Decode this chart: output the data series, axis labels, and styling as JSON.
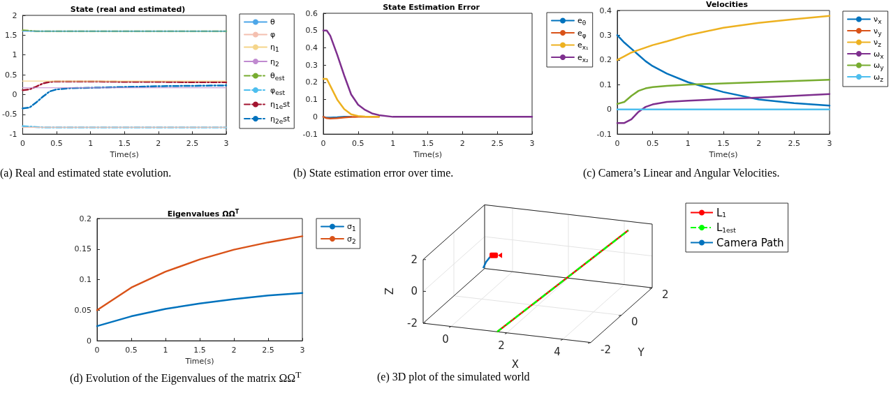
{
  "chart_data": [
    {
      "type": "line",
      "title": "State (real and estimated)",
      "xlabel": "Time(s)",
      "annotations": [
        "(a) Real and estimated state evolution."
      ],
      "legend": "right",
      "grid": false,
      "marker": "none",
      "xlim": [
        0,
        3
      ],
      "ylim": [
        -1,
        2
      ],
      "xticks": [
        0,
        0.5,
        1,
        1.5,
        2,
        2.5,
        3
      ],
      "yticks": [
        -1,
        -0.5,
        0,
        0.5,
        1,
        1.5,
        2
      ],
      "x": [
        0,
        0.1,
        0.2,
        0.3,
        0.4,
        0.5,
        0.7,
        1,
        1.5,
        2,
        2.5,
        3
      ],
      "series": [
        {
          "name": "θ",
          "color": "#4da6e8",
          "line_style": "solid",
          "values": [
            1.6,
            1.6,
            1.6,
            1.6,
            1.6,
            1.6,
            1.6,
            1.6,
            1.6,
            1.6,
            1.6,
            1.6
          ]
        },
        {
          "name": "φ",
          "color": "#f4c0b0",
          "line_style": "solid",
          "values": [
            -0.83,
            -0.83,
            -0.83,
            -0.83,
            -0.83,
            -0.83,
            -0.83,
            -0.83,
            -0.83,
            -0.83,
            -0.83,
            -0.83
          ]
        },
        {
          "name": "η$_{1}$",
          "color": "#f5d58a",
          "line_style": "solid",
          "values": [
            0.34,
            0.34,
            0.34,
            0.34,
            0.34,
            0.34,
            0.34,
            0.34,
            0.34,
            0.34,
            0.34,
            0.34
          ]
        },
        {
          "name": "η$_{2}$",
          "color": "#c08ad0",
          "line_style": "solid",
          "values": [
            0.17,
            0.17,
            0.17,
            0.17,
            0.17,
            0.17,
            0.17,
            0.17,
            0.17,
            0.17,
            0.17,
            0.17
          ]
        },
        {
          "name": "θ$_{est}$",
          "color": "#77ac30",
          "line_style": "dashed",
          "values": [
            1.62,
            1.61,
            1.6,
            1.6,
            1.6,
            1.6,
            1.6,
            1.6,
            1.6,
            1.6,
            1.6,
            1.6
          ]
        },
        {
          "name": "φ$_{est}$",
          "color": "#4dbeee",
          "line_style": "dashed",
          "values": [
            -0.8,
            -0.81,
            -0.82,
            -0.83,
            -0.83,
            -0.83,
            -0.83,
            -0.83,
            -0.83,
            -0.83,
            -0.83,
            -0.83
          ]
        },
        {
          "name": "η$_{1}$$_{e}$st",
          "color": "#a2142f",
          "line_style": "dashed",
          "values": [
            0.11,
            0.13,
            0.2,
            0.28,
            0.32,
            0.33,
            0.33,
            0.33,
            0.32,
            0.32,
            0.31,
            0.31
          ]
        },
        {
          "name": "η$_{2}$$_{e}$st",
          "color": "#0072bd",
          "line_style": "dashed",
          "values": [
            -0.35,
            -0.33,
            -0.2,
            -0.05,
            0.08,
            0.13,
            0.16,
            0.17,
            0.19,
            0.21,
            0.22,
            0.23
          ]
        }
      ]
    },
    {
      "type": "line",
      "title": "State Estimation Error",
      "xlabel": "Time(s)",
      "annotations": [
        "(b) State estimation error over time."
      ],
      "legend": "right",
      "grid": false,
      "marker": "none",
      "xlim": [
        0,
        3
      ],
      "ylim": [
        -0.1,
        0.6
      ],
      "xticks": [
        0,
        0.5,
        1,
        1.5,
        2,
        2.5,
        3
      ],
      "yticks": [
        -0.1,
        0,
        0.1,
        0.2,
        0.3,
        0.4,
        0.5,
        0.6
      ],
      "x": [
        0,
        0.05,
        0.1,
        0.2,
        0.3,
        0.4,
        0.5,
        0.6,
        0.7,
        0.8,
        1,
        1.5,
        2,
        3
      ],
      "series": [
        {
          "name": "e$_{θ}$",
          "color": "#0072bd",
          "values": [
            0,
            -0.005,
            -0.005,
            -0.003,
            0,
            0,
            null,
            null,
            null,
            null,
            null,
            null,
            null,
            null
          ]
        },
        {
          "name": "e$_{φ}$",
          "color": "#d95319",
          "values": [
            0,
            -0.008,
            -0.01,
            -0.008,
            -0.004,
            -0.001,
            0,
            0,
            0,
            0,
            null,
            null,
            null,
            null
          ]
        },
        {
          "name": "e$_{x₁}$",
          "color": "#edb120",
          "values": [
            0.22,
            0.22,
            0.18,
            0.1,
            0.045,
            0.015,
            0.005,
            0.002,
            0,
            0,
            null,
            null,
            null,
            null
          ]
        },
        {
          "name": "e$_{x₂}$",
          "color": "#7e2f8e",
          "values": [
            0.5,
            0.5,
            0.47,
            0.36,
            0.24,
            0.13,
            0.07,
            0.04,
            0.02,
            0.01,
            0,
            0,
            0,
            0
          ]
        }
      ]
    },
    {
      "type": "line",
      "title": "Velocities",
      "xlabel": "Time(s)",
      "annotations": [
        "(c) Camera’s Linear and Angular Velocities."
      ],
      "legend": "right",
      "grid": false,
      "marker": "none",
      "xlim": [
        0,
        3
      ],
      "ylim": [
        -0.1,
        0.4
      ],
      "xticks": [
        0,
        0.5,
        1,
        1.5,
        2,
        2.5,
        3
      ],
      "yticks": [
        -0.1,
        0,
        0.1,
        0.2,
        0.3,
        0.4
      ],
      "x": [
        0,
        0.1,
        0.2,
        0.3,
        0.4,
        0.5,
        0.7,
        1,
        1.5,
        2,
        2.5,
        3
      ],
      "series": [
        {
          "name": "ν$_{x}$",
          "color": "#0072bd",
          "values": [
            0.3,
            0.27,
            0.245,
            0.22,
            0.195,
            0.175,
            0.145,
            0.11,
            0.07,
            0.04,
            0.025,
            0.015
          ]
        },
        {
          "name": "ν$_{y}$",
          "color": "#d95319",
          "values": [
            null,
            null,
            null,
            null,
            null,
            null,
            null,
            null,
            null,
            null,
            null,
            null
          ]
        },
        {
          "name": "ν$_{z}$",
          "color": "#edb120",
          "values": [
            0.2,
            0.215,
            0.23,
            0.24,
            0.25,
            0.26,
            0.275,
            0.3,
            0.33,
            0.35,
            0.365,
            0.378
          ]
        },
        {
          "name": "ω$_{x}$",
          "color": "#7e2f8e",
          "values": [
            -0.055,
            -0.055,
            -0.04,
            -0.01,
            0.01,
            0.02,
            0.03,
            0.035,
            0.042,
            0.048,
            0.055,
            0.062
          ]
        },
        {
          "name": "ω$_{y}$",
          "color": "#77ac30",
          "values": [
            0.022,
            0.03,
            0.055,
            0.075,
            0.085,
            0.09,
            0.095,
            0.1,
            0.105,
            0.11,
            0.115,
            0.12
          ]
        },
        {
          "name": "ω$_{z}$",
          "color": "#4dbeee",
          "values": [
            0,
            0,
            0,
            0,
            0,
            0,
            0,
            0,
            0,
            0,
            0,
            0
          ]
        }
      ]
    },
    {
      "type": "line",
      "title": "Eigenvalues ΩΩ$^{T}$",
      "xlabel": "Time(s)",
      "annotations": [
        "(d) Evolution of the Eigenvalues of the matrix ΩΩ$^{T}$"
      ],
      "legend": "right",
      "grid": false,
      "marker": "none",
      "xlim": [
        0,
        3
      ],
      "ylim": [
        0,
        0.2
      ],
      "xticks": [
        0,
        0.5,
        1,
        1.5,
        2,
        2.5,
        3
      ],
      "yticks": [
        0,
        0.05,
        0.1,
        0.15,
        0.2
      ],
      "x": [
        0,
        0.5,
        1,
        1.5,
        2,
        2.5,
        3
      ],
      "series": [
        {
          "name": "σ$_{1}$",
          "color": "#0072bd",
          "values": [
            0.024,
            0.04,
            0.052,
            0.061,
            0.068,
            0.074,
            0.078
          ]
        },
        {
          "name": "σ$_{2}$",
          "color": "#d95319",
          "values": [
            0.05,
            0.087,
            0.113,
            0.133,
            0.149,
            0.161,
            0.171
          ]
        }
      ]
    },
    {
      "type": "other",
      "xlabel": "X",
      "ylabel": "Y",
      "y2label": "Z",
      "annotations": [
        "(e) 3D plot of the simulated world",
        "0",
        "2",
        "4",
        "-2",
        "0",
        "2",
        "-2",
        "0",
        "2"
      ],
      "legend": "top right",
      "series": [
        {
          "name": "L$_{1}$",
          "color": "#ff0000",
          "line_style": "solid"
        },
        {
          "name": "L$_{1est}$",
          "color": "#00ff00",
          "line_style": "dashed"
        },
        {
          "name": "Camera Path",
          "color": "#0072bd",
          "line_style": "solid"
        }
      ]
    }
  ]
}
